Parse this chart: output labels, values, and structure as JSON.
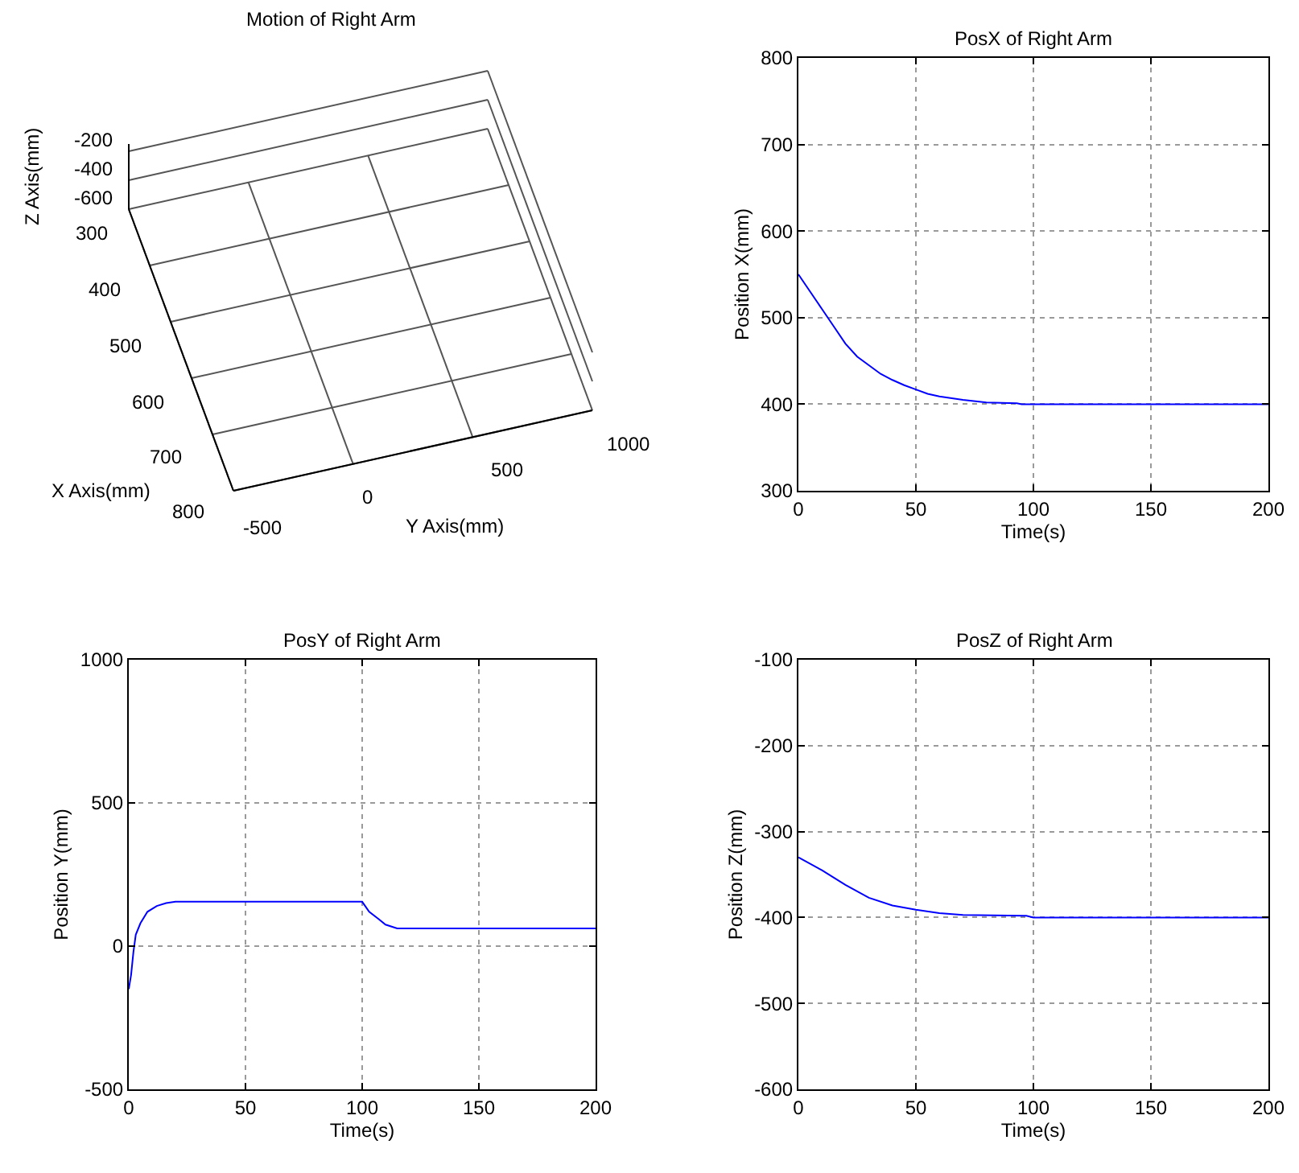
{
  "chart_data": [
    {
      "type": "other",
      "title": "Motion of Right Arm",
      "xlabel": "X Axis(mm)",
      "ylabel": "Y Axis(mm)",
      "annotations": [
        "300",
        "400",
        "500",
        "600",
        "700",
        "800",
        "-500",
        "0",
        "500",
        "1000",
        "-200",
        "-400",
        "-600",
        "Z Axis(mm)"
      ]
    },
    {
      "type": "line",
      "title": "PosX of Right Arm",
      "xlabel": "Time(s)",
      "ylabel": "Position X(mm)",
      "xlim": [
        0,
        200
      ],
      "xticks": [
        0,
        50,
        100,
        150,
        200
      ],
      "ylim": [
        300,
        800
      ],
      "yticks": [
        300,
        400,
        500,
        600,
        700,
        800
      ],
      "grid": true,
      "line_style": "solid",
      "series": [
        {
          "color": "#0000ff",
          "x": [
            0,
            5,
            10,
            15,
            20,
            25,
            30,
            35,
            40,
            45,
            50,
            55,
            60,
            70,
            80,
            93,
            95,
            200
          ],
          "values": [
            550,
            530,
            510,
            490,
            470,
            455,
            445,
            435,
            428,
            422,
            417,
            412,
            409,
            405,
            402,
            401,
            400,
            400
          ]
        }
      ]
    },
    {
      "type": "line",
      "title": "PosY of Right Arm",
      "xlabel": "Time(s)",
      "ylabel": "Position Y(mm)",
      "xlim": [
        0,
        200
      ],
      "xticks": [
        0,
        50,
        100,
        150,
        200
      ],
      "ylim": [
        -500,
        1000
      ],
      "yticks": [
        -500,
        0,
        500,
        1000
      ],
      "grid": true,
      "line_style": "solid",
      "series": [
        {
          "color": "#0000ff",
          "x": [
            0,
            1,
            2,
            3,
            5,
            8,
            12,
            16,
            20,
            100,
            103,
            107,
            110,
            115,
            200
          ],
          "values": [
            -150,
            -100,
            -20,
            40,
            80,
            120,
            140,
            150,
            155,
            155,
            120,
            95,
            75,
            62,
            62
          ]
        }
      ]
    },
    {
      "type": "line",
      "title": "PosZ of Right Arm",
      "xlabel": "Time(s)",
      "ylabel": "Position Z(mm)",
      "xlim": [
        0,
        200
      ],
      "xticks": [
        0,
        50,
        100,
        150,
        200
      ],
      "ylim": [
        -600,
        -100
      ],
      "yticks": [
        -600,
        -500,
        -400,
        -300,
        -200,
        -100
      ],
      "grid": true,
      "line_style": "solid",
      "series": [
        {
          "color": "#0000ff",
          "x": [
            0,
            10,
            20,
            30,
            40,
            50,
            60,
            70,
            97,
            100,
            200
          ],
          "values": [
            -330,
            -345,
            -362,
            -377,
            -386,
            -391,
            -395,
            -397,
            -398,
            -400,
            -400
          ]
        }
      ]
    }
  ]
}
